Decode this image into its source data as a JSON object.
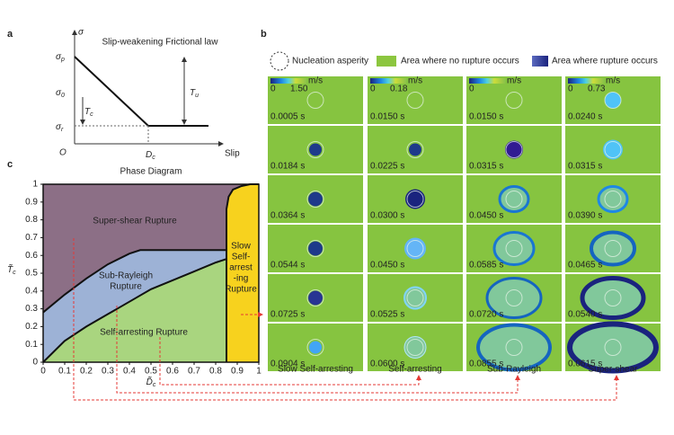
{
  "panel_a": {
    "label": "a",
    "title": "Slip-weakening Frictional law",
    "y_axis": "σ",
    "x_axis": "Slip",
    "origin": "O",
    "symbols": [
      {
        "symbol": "σ",
        "sub": "p"
      },
      {
        "symbol": "σ",
        "sub": "0"
      },
      {
        "symbol": "σ",
        "sub": "r"
      },
      {
        "symbol": "T",
        "sub": "c"
      },
      {
        "symbol": "T",
        "sub": "u"
      },
      {
        "symbol": "D",
        "sub": "c"
      }
    ]
  },
  "panel_b": {
    "label": "b",
    "legend": [
      "Nucleation asperity",
      "Area where no rupture occurs",
      "Area where rupture occurs"
    ],
    "colorbar_unit": "m/s",
    "colorbar_min": "0",
    "columns": [
      {
        "name": "Slow Self-arresting",
        "colorbar_max": "1.50",
        "times": [
          "0.0005 s",
          "0.0184 s",
          "0.0364 s",
          "0.0544 s",
          "0.0725 s",
          "0.0904 s"
        ]
      },
      {
        "name": "Self-arresting",
        "colorbar_max": "0.18",
        "times": [
          "0.0150 s",
          "0.0225 s",
          "0.0300 s",
          "0.0450 s",
          "0.0525 s",
          "0.0600 s"
        ]
      },
      {
        "name": "Sub-Rayleigh",
        "colorbar_max": null,
        "times": [
          "0.0150 s",
          "0.0315 s",
          "0.0450 s",
          "0.0585 s",
          "0.0720 s",
          "0.0855 s"
        ]
      },
      {
        "name": "Super-shear",
        "colorbar_max": "0.73",
        "times": [
          "0.0240 s",
          "0.0315 s",
          "0.0390 s",
          "0.0465 s",
          "0.0540 s",
          "0.0615 s"
        ]
      }
    ]
  },
  "panel_c": {
    "label": "c",
    "title": "Phase Diagram",
    "x_axis": "D̃",
    "x_axis_sub": "c",
    "y_axis": "T̃",
    "y_axis_sub": "c",
    "xlim": [
      0,
      1
    ],
    "ylim": [
      0,
      1
    ],
    "xticks": [
      0,
      0.1,
      0.2,
      0.3,
      0.4,
      0.5,
      0.6,
      0.7,
      0.8,
      0.9,
      1
    ],
    "yticks": [
      0,
      0.1,
      0.2,
      0.3,
      0.4,
      0.5,
      0.6,
      0.7,
      0.8,
      0.9,
      1
    ],
    "regions": [
      {
        "label_lines": [
          "Super-shear Rupture"
        ],
        "color": "#8c6f86"
      },
      {
        "label_lines": [
          "Sub-Rayleigh",
          "Rupture"
        ],
        "color": "#9db2d6",
        "boundary": {
          "x": [
            0,
            0.1,
            0.2,
            0.3,
            0.4,
            0.45,
            0.85
          ],
          "y": [
            0.28,
            0.38,
            0.47,
            0.55,
            0.61,
            0.63,
            0.63
          ]
        }
      },
      {
        "label_lines": [
          "Self-arresting Rupture"
        ],
        "color": "#a9d57f",
        "boundary": {
          "x": [
            0,
            0.1,
            0.2,
            0.3,
            0.4,
            0.5,
            0.6,
            0.7,
            0.8,
            0.85
          ],
          "y": [
            0,
            0.12,
            0.2,
            0.27,
            0.34,
            0.41,
            0.46,
            0.51,
            0.56,
            0.58
          ]
        }
      },
      {
        "label_lines": [
          "Slow",
          "Self-",
          "arrest",
          "-ing",
          "Rupture"
        ],
        "color": "#f7d21e",
        "boundary": {
          "x": [
            0.85,
            0.85,
            0.86,
            0.88,
            0.92,
            0.96,
            1
          ],
          "y": [
            0,
            0.86,
            0.93,
            0.97,
            0.99,
            1,
            1
          ]
        }
      }
    ]
  }
}
